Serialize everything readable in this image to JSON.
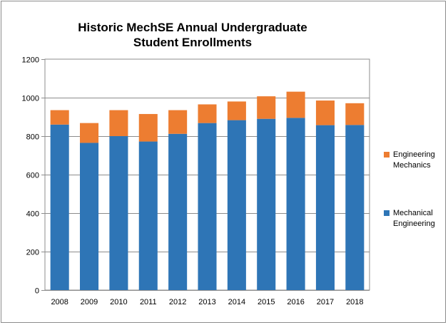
{
  "chart_data": {
    "type": "bar",
    "stacked": true,
    "title": [
      "Historic MechSE Annual Undergraduate",
      "Student Enrollments"
    ],
    "categories": [
      "2008",
      "2009",
      "2010",
      "2011",
      "2012",
      "2013",
      "2014",
      "2015",
      "2016",
      "2017",
      "2018"
    ],
    "series": [
      {
        "name": "Mechanical Engineering",
        "color": "#2e75b6",
        "values": [
          860,
          765,
          800,
          772,
          812,
          868,
          883,
          890,
          895,
          857,
          858
        ]
      },
      {
        "name": "Engineering Mechanics",
        "color": "#ed7d31",
        "values": [
          75,
          103,
          135,
          143,
          123,
          97,
          97,
          117,
          136,
          128,
          113
        ]
      }
    ],
    "ylim": [
      0,
      1200
    ],
    "yticks": [
      0,
      200,
      400,
      600,
      800,
      1000,
      1200
    ],
    "grid": "horizontal",
    "legend_position": "right"
  }
}
